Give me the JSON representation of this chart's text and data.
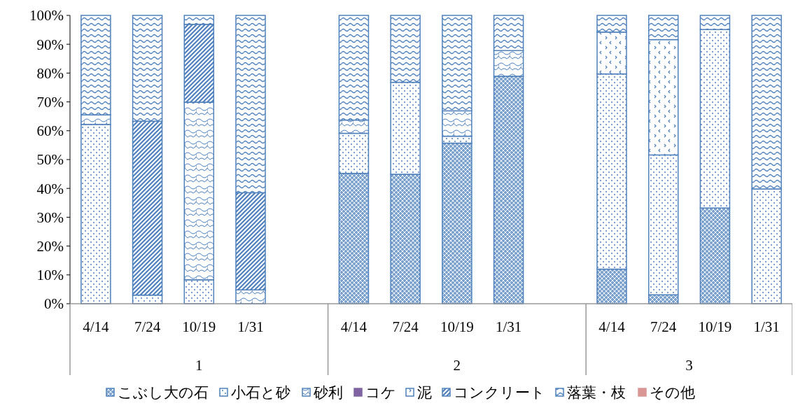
{
  "chart_data": {
    "type": "bar",
    "stacked": true,
    "categories": [
      "4/14",
      "7/24",
      "10/19",
      "1/31",
      null,
      "4/14",
      "7/24",
      "10/19",
      "1/31",
      null,
      "4/14",
      "7/24",
      "10/19",
      "1/31"
    ],
    "annotations": [
      "1",
      "2",
      "3"
    ],
    "series": [
      {
        "name": "こぶし大の石",
        "color": "#4f81bd",
        "values": [
          0,
          0,
          0,
          0,
          null,
          45.2,
          44.9,
          55.7,
          78.9,
          null,
          12.0,
          3.1,
          33.2,
          0
        ]
      },
      {
        "name": "小石と砂",
        "color": "#4f81bd",
        "values": [
          62.2,
          3.0,
          8.3,
          0,
          null,
          13.9,
          31.9,
          2.4,
          0,
          null,
          67.7,
          48.5,
          61.9,
          39.8
        ]
      },
      {
        "name": "砂利",
        "color": "#4f81bd",
        "values": [
          3.3,
          0,
          61.6,
          4.8,
          null,
          4.6,
          0,
          8.8,
          8.9,
          null,
          0,
          0,
          0,
          0
        ]
      },
      {
        "name": "コケ",
        "color": "#8064a2",
        "values": [
          0,
          0,
          0,
          0,
          null,
          0,
          0,
          0,
          0,
          null,
          0,
          0,
          0,
          0
        ]
      },
      {
        "name": "泥",
        "color": "#4f81bd",
        "values": [
          0,
          0,
          0,
          0,
          null,
          0,
          0,
          0,
          0,
          null,
          14.5,
          40.0,
          0,
          0
        ]
      },
      {
        "name": "コンクリート",
        "color": "#4f81bd",
        "values": [
          0,
          60.3,
          27.0,
          33.7,
          null,
          0,
          0,
          0,
          0,
          null,
          0,
          0,
          0,
          0
        ]
      },
      {
        "name": "落葉・枝",
        "color": "#4f81bd",
        "values": [
          34.5,
          36.7,
          3.1,
          61.5,
          null,
          36.3,
          23.2,
          33.1,
          12.2,
          null,
          5.8,
          8.4,
          4.9,
          60.2
        ]
      },
      {
        "name": "その他",
        "color": "#d99694",
        "values": [
          0,
          0,
          0,
          0,
          null,
          0,
          0,
          0,
          0,
          null,
          0,
          0,
          0,
          0
        ]
      }
    ],
    "ylim": [
      0,
      100
    ],
    "yticks": [
      {
        "value": 0,
        "label": "0%"
      },
      {
        "value": 10,
        "label": "10%"
      },
      {
        "value": 20,
        "label": "20%"
      },
      {
        "value": 30,
        "label": "30%"
      },
      {
        "value": 40,
        "label": "40%"
      },
      {
        "value": 50,
        "label": "50%"
      },
      {
        "value": 60,
        "label": "60%"
      },
      {
        "value": 70,
        "label": "70%"
      },
      {
        "value": 80,
        "label": "80%"
      },
      {
        "value": 90,
        "label": "90%"
      },
      {
        "value": 100,
        "label": "100%"
      }
    ],
    "grid": false,
    "legend": "bottom"
  }
}
